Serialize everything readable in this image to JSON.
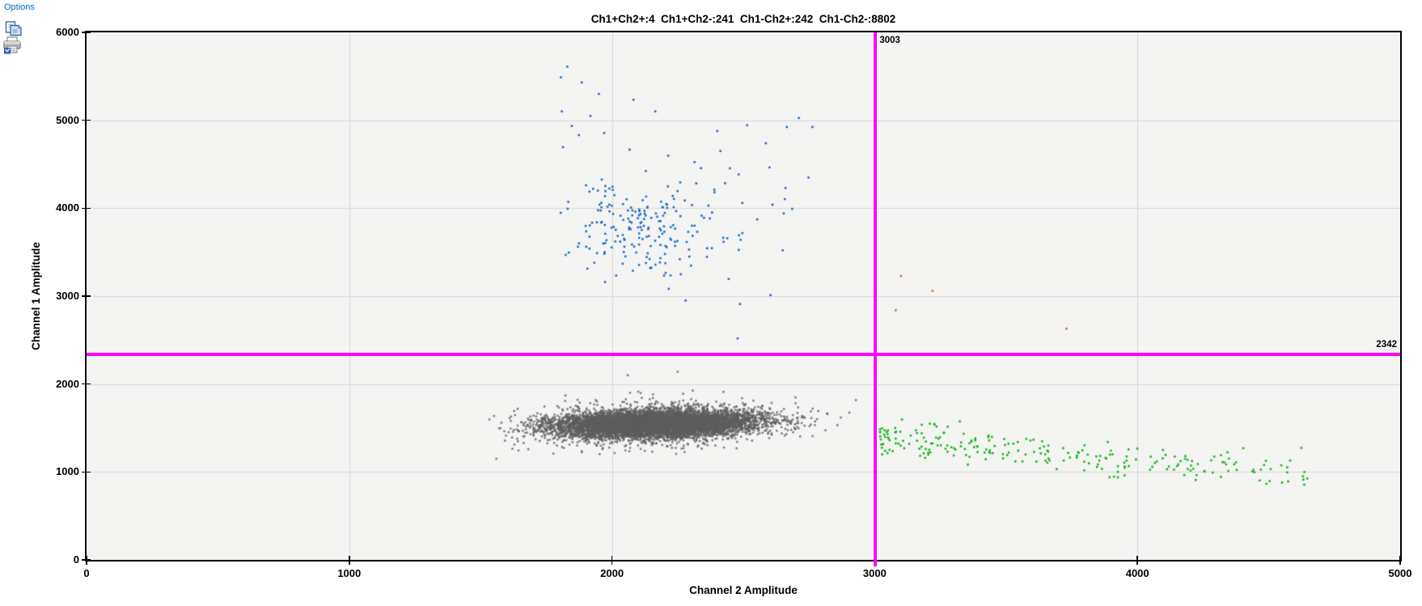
{
  "toolbar": {
    "options_label": "Options",
    "copy_icon": "copy-icon",
    "print_icon": "print-icon",
    "link_color": "#0066cc"
  },
  "chart_data": {
    "type": "scatter",
    "title": "Ch1+Ch2+:4  Ch1+Ch2-:241  Ch1-Ch2+:242  Ch1-Ch2-:8802",
    "quadrant_counts": {
      "ch1pos_ch2pos": 4,
      "ch1pos_ch2neg": 241,
      "ch1neg_ch2pos": 242,
      "ch1neg_ch2neg": 8802
    },
    "xlabel": "Channel 2 Amplitude",
    "ylabel": "Channel 1 Amplitude",
    "xlim": [
      0,
      5000
    ],
    "ylim": [
      0,
      6000
    ],
    "xticks": [
      0,
      1000,
      2000,
      3000,
      4000,
      5000
    ],
    "yticks": [
      0,
      1000,
      2000,
      3000,
      4000,
      5000,
      6000
    ],
    "grid": true,
    "plot_bg": "#f4f4f3",
    "grid_color": "#d9d9d9",
    "thresholds": {
      "color": "#ff00ff",
      "ch1_amplitude": 2342,
      "ch2_amplitude": 3003,
      "ch1_label": "2342",
      "ch2_label": "3003"
    },
    "clusters": [
      {
        "name": "ch1neg_ch2neg_negative_droplets",
        "color": "#5d5d5d",
        "alpha": 0.78,
        "count": 8802,
        "gen": [
          {
            "n": 7900,
            "cx": 2160,
            "cy": 1545,
            "sx": 185,
            "sy": 72,
            "tilt": 0.07
          },
          {
            "n": 899,
            "cx": 2140,
            "cy": 1545,
            "sx": 265,
            "sy": 130,
            "tilt": 0.07
          }
        ],
        "clip": {
          "x": [
            1530,
            2950
          ],
          "y": [
            1170,
            2060
          ]
        },
        "points": [
          [
            2250,
            2140
          ],
          [
            2060,
            2100
          ],
          [
            1560,
            1150
          ]
        ]
      },
      {
        "name": "ch1neg_ch2pos_green_droplets",
        "color": "#15b515",
        "alpha": 1,
        "count": 242,
        "band": {
          "n": 242,
          "x0": 3020,
          "x1": 4650,
          "pow": 1.5,
          "yAt0": 1400,
          "slope": -0.27,
          "sy": 95
        },
        "clip": {
          "x": [
            3000,
            4660
          ],
          "y": [
            775,
            1600
          ]
        }
      },
      {
        "name": "ch1pos_ch2neg_blue_droplets",
        "color": "#1668c4",
        "alpha": 1,
        "count": 241,
        "gen": [
          {
            "n": 175,
            "cx": 2130,
            "cy": 3800,
            "sx": 150,
            "sy": 290
          },
          {
            "n": 63,
            "cx": 2210,
            "cy": 4150,
            "sx": 290,
            "sy": 700
          }
        ],
        "clip": {
          "x": [
            1760,
            2900
          ],
          "y": [
            2420,
            5700
          ]
        },
        "points": [
          [
            1830,
            5610
          ],
          [
            1885,
            5430
          ],
          [
            1950,
            5300
          ]
        ]
      },
      {
        "name": "ch1pos_ch2pos_orange_droplets",
        "color": "#dd6b0d",
        "alpha": 1,
        "count": 4,
        "points": [
          [
            3100,
            3230
          ],
          [
            3220,
            3060
          ],
          [
            3080,
            2840
          ],
          [
            3730,
            2630
          ]
        ]
      }
    ]
  }
}
